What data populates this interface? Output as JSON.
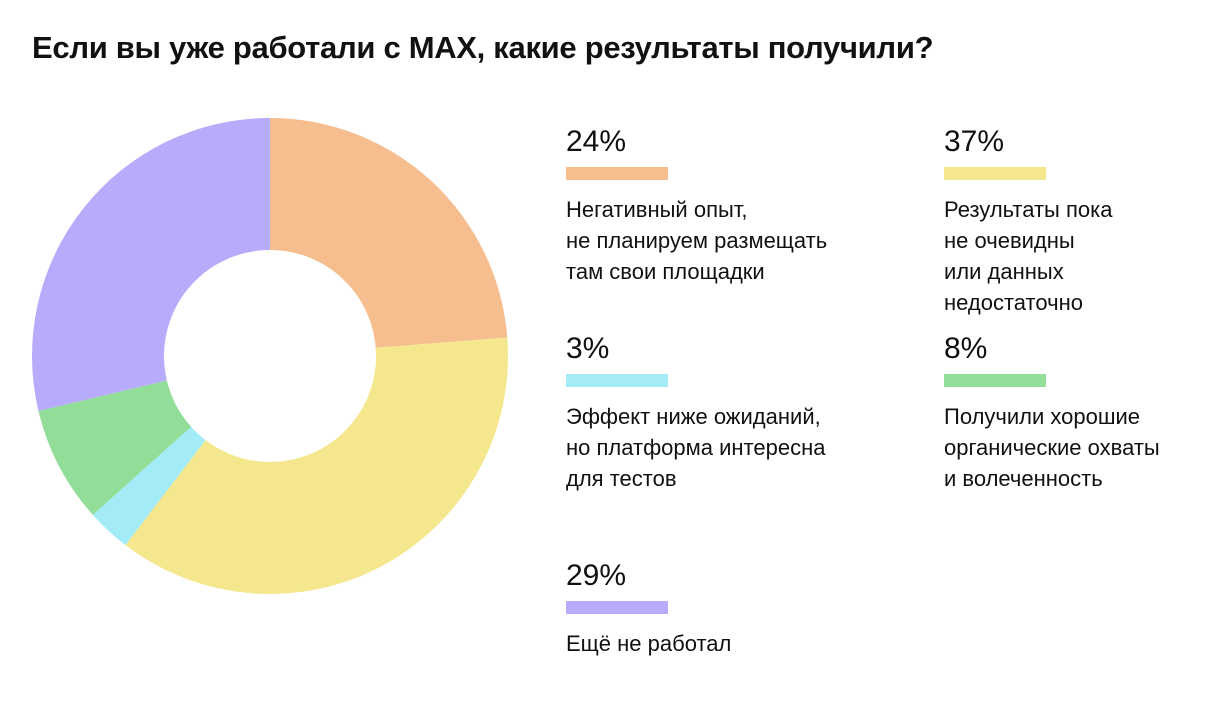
{
  "chart_data": {
    "type": "pie",
    "title": "Если вы уже работали с MAX, какие результаты получили?",
    "slices": [
      {
        "percent_label": "24%",
        "value": 24,
        "label": "Негативный опыт,\nне планируем размещать\nтам свои площадки",
        "color": "#F6BD8F"
      },
      {
        "percent_label": "37%",
        "value": 37,
        "label": "Результаты пока\nне очевидны\nили данных\nнедостаточно",
        "color": "#F5E78E"
      },
      {
        "percent_label": "3%",
        "value": 3,
        "label": "Эффект ниже ожиданий,\nно платформа интересна\nдля тестов",
        "color": "#A2EBF7"
      },
      {
        "percent_label": "8%",
        "value": 8,
        "label": "Получили хорошие\nорганические охваты\nи волеченность",
        "color": "#92DE98"
      },
      {
        "percent_label": "29%",
        "value": 29,
        "label": "Ещё не работал",
        "color": "#B7ACFB"
      }
    ]
  }
}
